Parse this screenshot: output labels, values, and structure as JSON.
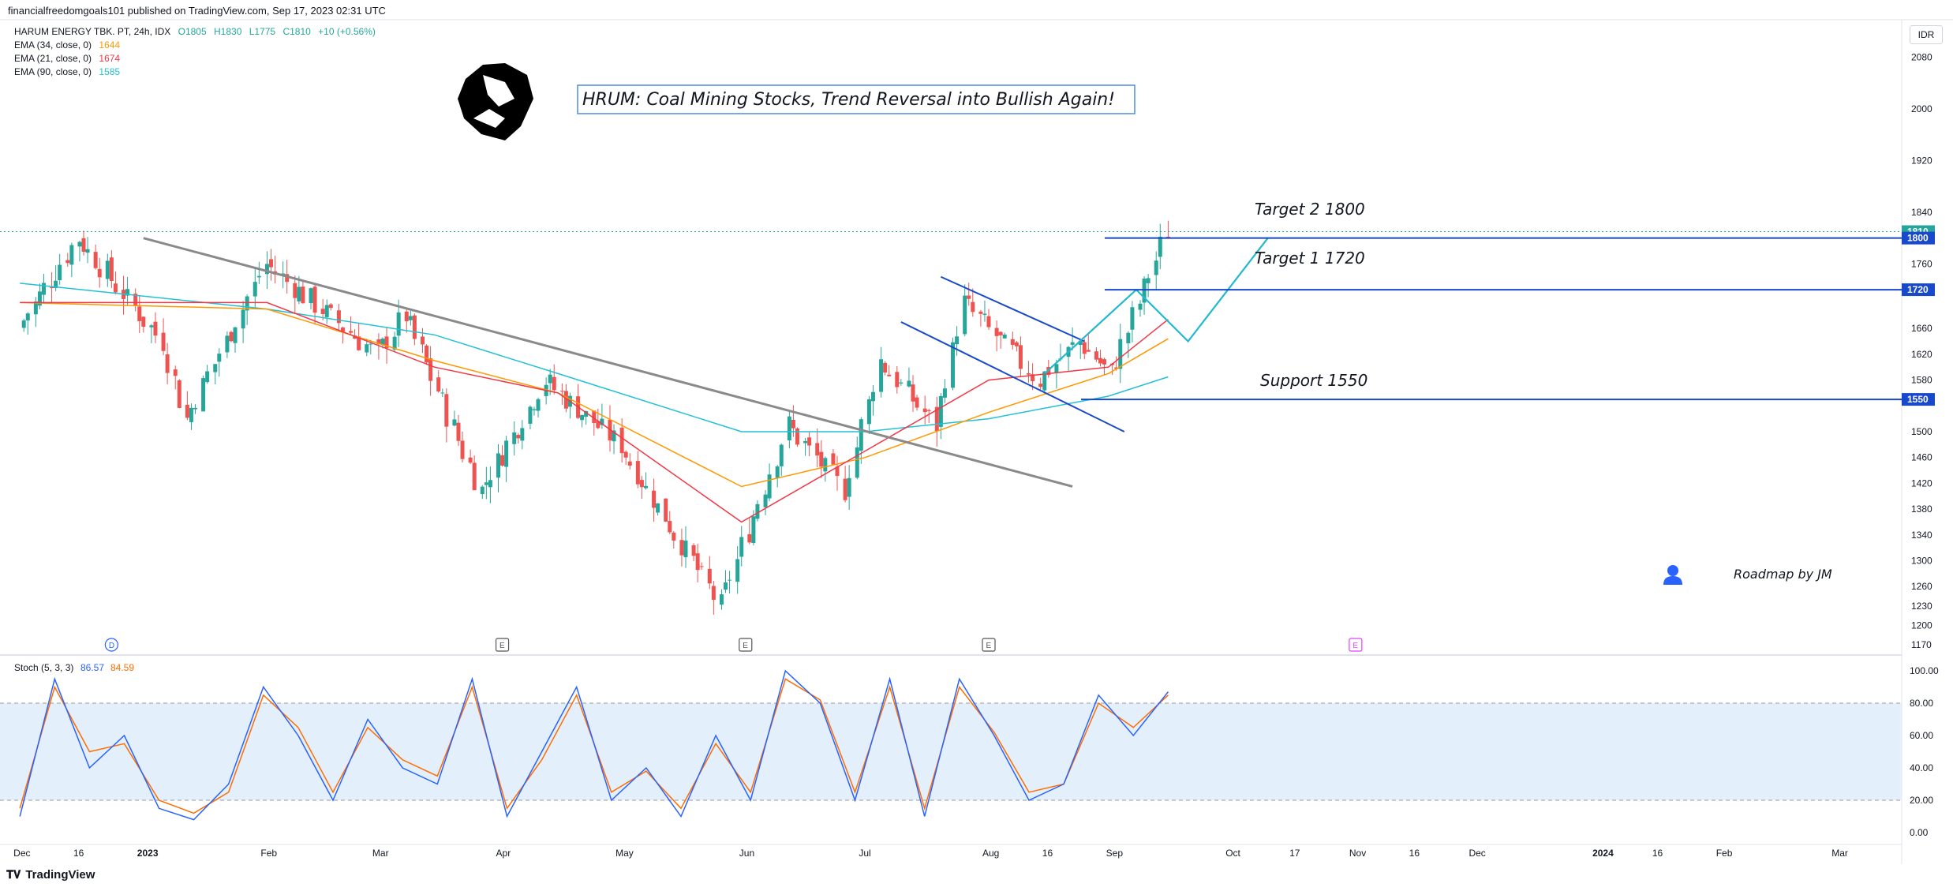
{
  "header": {
    "published": "financialfreedomgoals101 published on TradingView.com, Sep 17, 2023 02:31 UTC"
  },
  "legend": {
    "symbol": "HARUM ENERGY TBK. PT, 24h, IDX",
    "o": "O1805",
    "h": "H1830",
    "l": "L1775",
    "c": "C1810",
    "chg": "+10 (+0.56%)",
    "ema34_label": "EMA (34, close, 0)",
    "ema34_value": "1644",
    "ema21_label": "EMA (21, close, 0)",
    "ema21_value": "1674",
    "ema90_label": "EMA (90, close, 0)",
    "ema90_value": "1585",
    "stoch_label": "Stoch (5, 3, 3)",
    "stoch_k": "86.57",
    "stoch_d": "84.59"
  },
  "currency": "IDR",
  "colors": {
    "up": "#26a69a",
    "down": "#ef5350",
    "ema34": "#ff9800",
    "ema21": "#f23645",
    "ema90": "#22c1d6",
    "line_blue": "#1848cc",
    "trend": "#8a8a8a",
    "stoch_k": "#2962ff",
    "stoch_d": "#ff6d00"
  },
  "annotations": {
    "title": "HRUM: Coal Mining Stocks, Trend Reversal into Bullish Again!",
    "target2": "Target  2 1800",
    "target1": "Target 1  1720",
    "support": "Support 1550",
    "roadmap": "Roadmap by JM"
  },
  "footer": {
    "brand": "TradingView"
  },
  "event_markers": [
    "D",
    "E",
    "E",
    "E",
    "E"
  ],
  "chart_data": {
    "type": "candlestick",
    "title": "HRUM: Coal Mining Stocks, Trend Reversal into Bullish Again!",
    "ylim": [
      1160,
      2120
    ],
    "price_ticks": [
      2080,
      2000,
      1920,
      1840,
      1800,
      1760,
      1720,
      1660,
      1620,
      1580,
      1550,
      1500,
      1460,
      1420,
      1380,
      1340,
      1300,
      1260,
      1230,
      1200,
      1170
    ],
    "price_tick_labels": [
      "2080",
      "2000",
      "1920",
      "1840",
      "1800",
      "1760",
      "1720",
      "1660",
      "1620",
      "1580",
      "1550",
      "1500",
      "1460",
      "1420",
      "1380",
      "1340",
      "1300",
      "1260",
      "1230",
      "1200",
      "1170"
    ],
    "x_ticks": [
      "Dec",
      "16",
      "2023",
      "Feb",
      "Mar",
      "Apr",
      "May",
      "Jun",
      "Jul",
      "Aug",
      "16",
      "Sep",
      "Oct",
      "17",
      "Nov",
      "16",
      "Dec",
      "2024",
      "16",
      "Feb",
      "Mar"
    ],
    "last_price": 1810,
    "levels": [
      {
        "name": "Target 2",
        "value": 1800
      },
      {
        "name": "Target 1",
        "value": 1720
      },
      {
        "name": "Support",
        "value": 1550
      }
    ],
    "price_segments": [
      {
        "start": "2022-12-01",
        "end": "2022-12-16",
        "from": 1660,
        "to": 1800
      },
      {
        "start": "2022-12-16",
        "end": "2023-01-06",
        "from": 1800,
        "to": 1640
      },
      {
        "start": "2023-01-06",
        "end": "2023-01-12",
        "from": 1640,
        "to": 1520
      },
      {
        "start": "2023-01-12",
        "end": "2023-02-01",
        "from": 1520,
        "to": 1760
      },
      {
        "start": "2023-02-01",
        "end": "2023-03-01",
        "from": 1760,
        "to": 1620
      },
      {
        "start": "2023-03-01",
        "end": "2023-03-08",
        "from": 1620,
        "to": 1680
      },
      {
        "start": "2023-03-08",
        "end": "2023-03-27",
        "from": 1680,
        "to": 1410
      },
      {
        "start": "2023-03-27",
        "end": "2023-04-12",
        "from": 1410,
        "to": 1580
      },
      {
        "start": "2023-04-12",
        "end": "2023-05-01",
        "from": 1580,
        "to": 1480
      },
      {
        "start": "2023-05-01",
        "end": "2023-05-26",
        "from": 1480,
        "to": 1230
      },
      {
        "start": "2023-05-26",
        "end": "2023-06-12",
        "from": 1230,
        "to": 1510
      },
      {
        "start": "2023-06-12",
        "end": "2023-06-26",
        "from": 1510,
        "to": 1410
      },
      {
        "start": "2023-06-26",
        "end": "2023-07-05",
        "from": 1410,
        "to": 1610
      },
      {
        "start": "2023-07-05",
        "end": "2023-07-19",
        "from": 1610,
        "to": 1510
      },
      {
        "start": "2023-07-19",
        "end": "2023-07-26",
        "from": 1510,
        "to": 1700
      },
      {
        "start": "2023-07-26",
        "end": "2023-08-14",
        "from": 1700,
        "to": 1580
      },
      {
        "start": "2023-08-14",
        "end": "2023-08-24",
        "from": 1580,
        "to": 1640
      },
      {
        "start": "2023-08-24",
        "end": "2023-09-01",
        "from": 1640,
        "to": 1590
      },
      {
        "start": "2023-09-01",
        "end": "2023-09-15",
        "from": 1590,
        "to": 1810
      }
    ],
    "ema34": [
      {
        "date": "2022-12-01",
        "value": 1700
      },
      {
        "date": "2023-02-01",
        "value": 1690
      },
      {
        "date": "2023-03-15",
        "value": 1610
      },
      {
        "date": "2023-04-15",
        "value": 1560
      },
      {
        "date": "2023-05-31",
        "value": 1415
      },
      {
        "date": "2023-07-01",
        "value": 1460
      },
      {
        "date": "2023-08-01",
        "value": 1530
      },
      {
        "date": "2023-08-31",
        "value": 1590
      },
      {
        "date": "2023-09-15",
        "value": 1644
      }
    ],
    "ema21": [
      {
        "date": "2022-12-01",
        "value": 1700
      },
      {
        "date": "2023-02-01",
        "value": 1700
      },
      {
        "date": "2023-03-15",
        "value": 1600
      },
      {
        "date": "2023-04-15",
        "value": 1560
      },
      {
        "date": "2023-05-31",
        "value": 1360
      },
      {
        "date": "2023-07-01",
        "value": 1470
      },
      {
        "date": "2023-08-01",
        "value": 1580
      },
      {
        "date": "2023-08-31",
        "value": 1600
      },
      {
        "date": "2023-09-15",
        "value": 1674
      }
    ],
    "ema90": [
      {
        "date": "2022-12-01",
        "value": 1730
      },
      {
        "date": "2023-02-01",
        "value": 1690
      },
      {
        "date": "2023-03-15",
        "value": 1650
      },
      {
        "date": "2023-04-15",
        "value": 1590
      },
      {
        "date": "2023-05-31",
        "value": 1500
      },
      {
        "date": "2023-07-01",
        "value": 1500
      },
      {
        "date": "2023-08-01",
        "value": 1520
      },
      {
        "date": "2023-08-31",
        "value": 1555
      },
      {
        "date": "2023-09-15",
        "value": 1585
      }
    ],
    "drawings": {
      "trendline": [
        {
          "date": "2023-01-01",
          "price": 1800
        },
        {
          "date": "2023-08-22",
          "price": 1415
        }
      ],
      "channel_upper": [
        {
          "date": "2023-07-20",
          "price": 1740
        },
        {
          "date": "2023-08-25",
          "price": 1640
        }
      ],
      "channel_lower": [
        {
          "date": "2023-07-10",
          "price": 1670
        },
        {
          "date": "2023-09-04",
          "price": 1500
        }
      ],
      "path_up": [
        {
          "date": "2023-08-15",
          "price": 1590
        },
        {
          "date": "2023-09-07",
          "price": 1720
        },
        {
          "date": "2023-09-20",
          "price": 1640
        },
        {
          "date": "2023-10-10",
          "price": 1800
        }
      ]
    },
    "stoch": {
      "label": "Stoch (5, 3, 3)",
      "ylim": [
        0,
        100
      ],
      "ticks": [
        "100.00",
        "80.00",
        "60.00",
        "40.00",
        "20.00",
        "0.00"
      ],
      "band": [
        20,
        80
      ],
      "k": [
        10,
        95,
        40,
        60,
        15,
        8,
        30,
        90,
        60,
        20,
        70,
        40,
        30,
        95,
        10,
        50,
        90,
        20,
        40,
        10,
        60,
        20,
        100,
        80,
        20,
        95,
        10,
        95,
        60,
        20,
        30,
        85,
        60,
        87
      ],
      "d": [
        15,
        90,
        50,
        55,
        20,
        12,
        25,
        85,
        65,
        25,
        65,
        45,
        35,
        90,
        15,
        45,
        85,
        25,
        38,
        15,
        55,
        25,
        95,
        82,
        25,
        90,
        15,
        90,
        62,
        25,
        30,
        80,
        65,
        85
      ]
    }
  }
}
